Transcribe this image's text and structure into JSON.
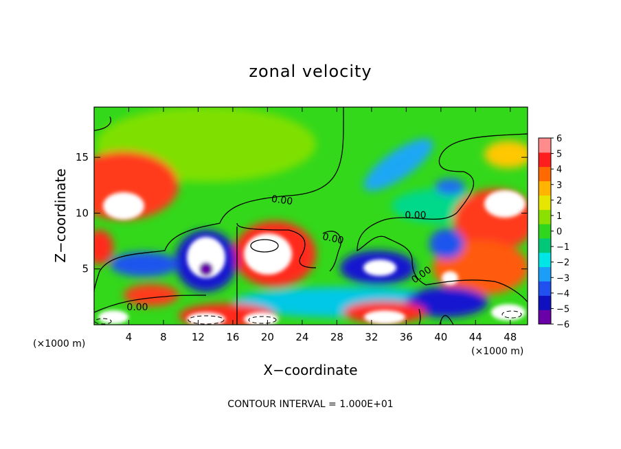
{
  "chart_data": {
    "type": "heatmap",
    "title": "zonal velocity",
    "xlabel": "X−coordinate",
    "ylabel": "Z−coordinate",
    "x_unit": "(×1000 m)",
    "z_unit": "(×1000 m)",
    "xlim": [
      0,
      50
    ],
    "ylim": [
      0,
      19.5
    ],
    "x_ticks": [
      4,
      8,
      12,
      16,
      20,
      24,
      28,
      32,
      36,
      40,
      44,
      48
    ],
    "y_ticks": [
      5,
      10,
      15
    ],
    "colorbar": {
      "range": [
        -6,
        6
      ],
      "ticks": [
        "6",
        "5",
        "4",
        "3",
        "2",
        "1",
        "0",
        "−1",
        "−2",
        "−3",
        "−4",
        "−5",
        "−6"
      ],
      "colors": [
        "#6a00a8",
        "#1010c0",
        "#2050f0",
        "#1a9ef8",
        "#00e6e6",
        "#00c878",
        "#2ed61e",
        "#8ce000",
        "#e6e600",
        "#ffb400",
        "#ff6a00",
        "#ff1e1e",
        "#ff8c8c"
      ]
    },
    "contour_labels": [
      "0.00",
      "0.00",
      "0.00",
      "0.00",
      "0.00"
    ],
    "footer": "CONTOUR INTERVAL = 1.000E+01"
  }
}
